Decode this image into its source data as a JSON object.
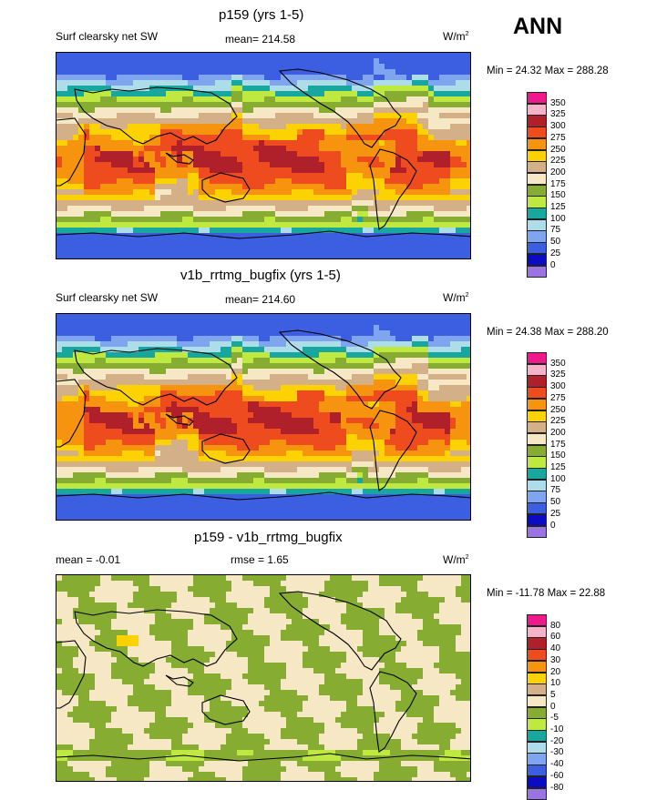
{
  "season": "ANN",
  "panels": [
    {
      "title": "p159 (yrs 1-5)",
      "left_label": "Surf clearsky net SW",
      "center_label": "mean= 214.58",
      "units": "W/m",
      "units_sup": "2",
      "minmax": "Min =  24.32 Max = 288.28"
    },
    {
      "title": "v1b_rrtmg_bugfix (yrs 1-5)",
      "left_label": "Surf clearsky net SW",
      "center_label": "mean= 214.60",
      "units": "W/m",
      "units_sup": "2",
      "minmax": "Min =  24.38 Max = 288.20"
    },
    {
      "title": "p159 - v1b_rrtmg_bugfix",
      "left_label": "mean =  -0.01",
      "center_label": "rmse =   1.65",
      "units": "W/m",
      "units_sup": "2",
      "minmax": "Min = -11.78 Max =  22.88"
    }
  ],
  "chart_data": [
    {
      "type": "heatmap",
      "title": "p159 (yrs 1-5)",
      "variable": "Surf clearsky net SW",
      "stats": {
        "mean": 214.58,
        "min": 24.32,
        "max": 288.28
      },
      "colorbar": {
        "levels": [
          "350",
          "325",
          "300",
          "275",
          "250",
          "225",
          "200",
          "175",
          "150",
          "125",
          "100",
          "75",
          "50",
          "25",
          "0"
        ],
        "colors": [
          "#ee1a8c",
          "#f4b3c6",
          "#b0202a",
          "#ee4b1f",
          "#f7940f",
          "#fdd203",
          "#d3b088",
          "#f6e8c4",
          "#86ad32",
          "#bfe840",
          "#17a79f",
          "#aeddea",
          "#7fa5ee",
          "#3c5ee0",
          "#0b0bc4",
          "#9a74e0"
        ]
      }
    },
    {
      "type": "heatmap",
      "title": "v1b_rrtmg_bugfix (yrs 1-5)",
      "variable": "Surf clearsky net SW",
      "stats": {
        "mean": 214.6,
        "min": 24.38,
        "max": 288.2
      },
      "colorbar": {
        "levels": [
          "350",
          "325",
          "300",
          "275",
          "250",
          "225",
          "200",
          "175",
          "150",
          "125",
          "100",
          "75",
          "50",
          "25",
          "0"
        ],
        "colors": [
          "#ee1a8c",
          "#f4b3c6",
          "#b0202a",
          "#ee4b1f",
          "#f7940f",
          "#fdd203",
          "#d3b088",
          "#f6e8c4",
          "#86ad32",
          "#bfe840",
          "#17a79f",
          "#aeddea",
          "#7fa5ee",
          "#3c5ee0",
          "#0b0bc4",
          "#9a74e0"
        ]
      }
    },
    {
      "type": "heatmap",
      "title": "p159 - v1b_rrtmg_bugfix",
      "stats": {
        "mean": -0.01,
        "rmse": 1.65,
        "min": -11.78,
        "max": 22.88
      },
      "colorbar": {
        "levels": [
          "80",
          "60",
          "40",
          "30",
          "20",
          "10",
          "5",
          "0",
          "-5",
          "-10",
          "-20",
          "-30",
          "-40",
          "-60",
          "-80"
        ],
        "colors": [
          "#ee1a8c",
          "#f4b3c6",
          "#b0202a",
          "#ee4b1f",
          "#f7940f",
          "#fdd203",
          "#d3b088",
          "#f6e8c4",
          "#86ad32",
          "#bfe840",
          "#17a79f",
          "#aeddea",
          "#7fa5ee",
          "#3c5ee0",
          "#0b0bc4",
          "#9a74e0"
        ]
      }
    }
  ]
}
